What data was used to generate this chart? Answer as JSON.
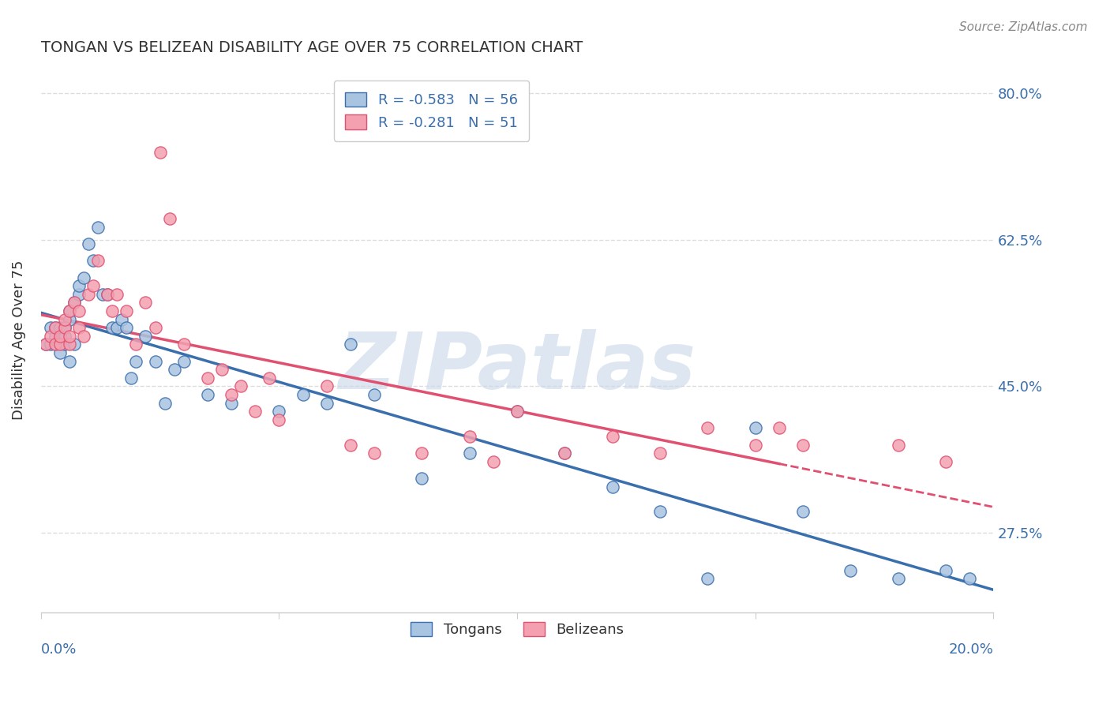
{
  "title": "TONGAN VS BELIZEAN DISABILITY AGE OVER 75 CORRELATION CHART",
  "source": "Source: ZipAtlas.com",
  "ylabel": "Disability Age Over 75",
  "xmin": 0.0,
  "xmax": 0.2,
  "ymin": 0.18,
  "ymax": 0.83,
  "yticks": [
    0.275,
    0.45,
    0.625,
    0.8
  ],
  "ytick_labels": [
    "27.5%",
    "45.0%",
    "62.5%",
    "80.0%"
  ],
  "blue_R": -0.583,
  "blue_N": 56,
  "pink_R": -0.281,
  "pink_N": 51,
  "blue_color": "#a8c4e0",
  "blue_line_color": "#3a6fad",
  "pink_color": "#f4a0b0",
  "pink_line_color": "#e05070",
  "background_color": "#ffffff",
  "grid_color": "#dddddd",
  "watermark": "ZIPatlas",
  "watermark_color": "#c8d8e8",
  "blue_x": [
    0.001,
    0.002,
    0.002,
    0.003,
    0.003,
    0.003,
    0.004,
    0.004,
    0.004,
    0.005,
    0.005,
    0.005,
    0.006,
    0.006,
    0.006,
    0.007,
    0.007,
    0.008,
    0.008,
    0.009,
    0.01,
    0.011,
    0.012,
    0.013,
    0.014,
    0.015,
    0.016,
    0.017,
    0.018,
    0.019,
    0.02,
    0.022,
    0.024,
    0.026,
    0.028,
    0.03,
    0.035,
    0.04,
    0.05,
    0.055,
    0.06,
    0.065,
    0.07,
    0.08,
    0.09,
    0.1,
    0.11,
    0.12,
    0.13,
    0.14,
    0.15,
    0.16,
    0.17,
    0.18,
    0.19,
    0.195
  ],
  "blue_y": [
    0.5,
    0.5,
    0.52,
    0.5,
    0.51,
    0.52,
    0.49,
    0.51,
    0.52,
    0.5,
    0.51,
    0.52,
    0.53,
    0.54,
    0.48,
    0.5,
    0.55,
    0.56,
    0.57,
    0.58,
    0.62,
    0.6,
    0.64,
    0.56,
    0.56,
    0.52,
    0.52,
    0.53,
    0.52,
    0.46,
    0.48,
    0.51,
    0.48,
    0.43,
    0.47,
    0.48,
    0.44,
    0.43,
    0.42,
    0.44,
    0.43,
    0.5,
    0.44,
    0.34,
    0.37,
    0.42,
    0.37,
    0.33,
    0.3,
    0.22,
    0.4,
    0.3,
    0.23,
    0.22,
    0.23,
    0.22
  ],
  "pink_x": [
    0.001,
    0.002,
    0.003,
    0.003,
    0.004,
    0.004,
    0.005,
    0.005,
    0.006,
    0.006,
    0.006,
    0.007,
    0.008,
    0.008,
    0.009,
    0.01,
    0.011,
    0.012,
    0.014,
    0.015,
    0.016,
    0.018,
    0.02,
    0.022,
    0.024,
    0.025,
    0.027,
    0.03,
    0.035,
    0.038,
    0.04,
    0.042,
    0.045,
    0.048,
    0.05,
    0.06,
    0.065,
    0.07,
    0.08,
    0.09,
    0.095,
    0.1,
    0.11,
    0.12,
    0.13,
    0.14,
    0.15,
    0.155,
    0.16,
    0.18,
    0.19
  ],
  "pink_y": [
    0.5,
    0.51,
    0.5,
    0.52,
    0.5,
    0.51,
    0.52,
    0.53,
    0.5,
    0.51,
    0.54,
    0.55,
    0.52,
    0.54,
    0.51,
    0.56,
    0.57,
    0.6,
    0.56,
    0.54,
    0.56,
    0.54,
    0.5,
    0.55,
    0.52,
    0.73,
    0.65,
    0.5,
    0.46,
    0.47,
    0.44,
    0.45,
    0.42,
    0.46,
    0.41,
    0.45,
    0.38,
    0.37,
    0.37,
    0.39,
    0.36,
    0.42,
    0.37,
    0.39,
    0.37,
    0.4,
    0.38,
    0.4,
    0.38,
    0.38,
    0.36
  ]
}
